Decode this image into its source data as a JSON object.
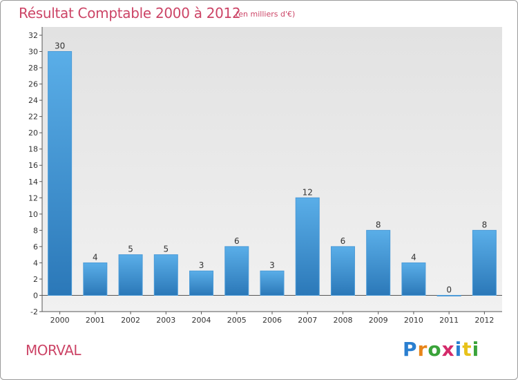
{
  "chart_data": {
    "type": "bar",
    "title": "Résultat Comptable 2000 à 2012",
    "subtitle": "(en milliers d'€)",
    "categories": [
      "2000",
      "2001",
      "2002",
      "2003",
      "2004",
      "2005",
      "2006",
      "2007",
      "2008",
      "2009",
      "2010",
      "2011",
      "2012"
    ],
    "values": [
      30,
      4,
      5,
      5,
      3,
      6,
      3,
      12,
      6,
      8,
      4,
      0,
      8
    ],
    "ylim": [
      -2,
      32
    ],
    "yticks": [
      -2,
      0,
      2,
      4,
      6,
      8,
      10,
      12,
      14,
      16,
      18,
      20,
      22,
      24,
      26,
      28,
      30,
      32
    ],
    "xlabel": "",
    "ylabel": "",
    "bar_color_top": "#5aaee8",
    "bar_color_bottom": "#2b78b8"
  },
  "footer": {
    "town": "MORVAL"
  },
  "logo": {
    "letters": [
      "P",
      "r",
      "o",
      "x",
      "i",
      "t",
      "i"
    ],
    "colors": [
      "#2a7fd0",
      "#e8851a",
      "#3aa33a",
      "#d42a6a",
      "#2a7fd0",
      "#e8c21a",
      "#3aa33a"
    ]
  }
}
